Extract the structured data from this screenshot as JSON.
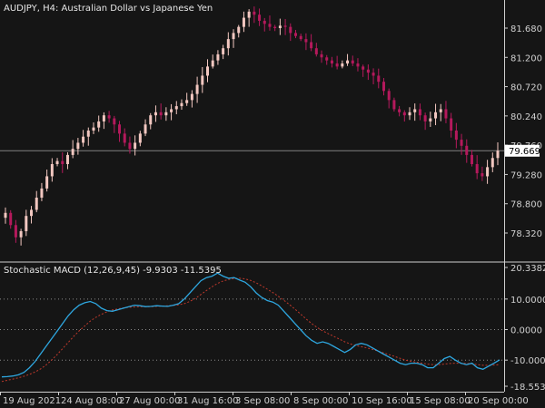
{
  "chart": {
    "title": "AUDJPY, H4:  Australian Dollar vs Japanese Yen",
    "symbol": "AUDJPY",
    "timeframe": "H4",
    "current_price": "79.669",
    "price_axis": [
      "81.680",
      "81.200",
      "80.720",
      "80.240",
      "79.760",
      "79.280",
      "78.800",
      "78.320"
    ],
    "indicator_title": "Stochastic MACD (12,26,9,45) -9.9303 -11.5395",
    "indicator_axis": [
      "20.3382",
      "10.0000",
      "0.0000",
      "-10.0000",
      "-18.5539"
    ],
    "time_axis": [
      "19 Aug 2021",
      "24 Aug 08:00",
      "27 Aug 00:00",
      "31 Aug 16:00",
      "3 Sep 08:00",
      "8 Sep 00:00",
      "10 Sep 16:00",
      "15 Sep 08:00",
      "20 Sep 00:00"
    ],
    "colors": {
      "background": "#151515",
      "bull_candle": "#f2c7c0",
      "bear_candle": "#b5195c",
      "macd_line": "#2ea7e0",
      "signal_line": "#c0392b",
      "grid": "#8a8a8a",
      "price_line": "#808080",
      "text": "#d0d0d0"
    }
  },
  "chart_data": [
    {
      "type": "candlestick",
      "title": "AUDJPY, H4:  Australian Dollar vs Japanese Yen",
      "y_ticks": [
        81.68,
        81.2,
        80.72,
        80.24,
        79.76,
        79.28,
        78.8,
        78.32
      ],
      "ylim": [
        78.15,
        82.1
      ],
      "x_tick_labels": [
        "19 Aug 2021",
        "24 Aug 08:00",
        "27 Aug 00:00",
        "31 Aug 16:00",
        "3 Sep 08:00",
        "8 Sep 00:00",
        "10 Sep 16:00",
        "15 Sep 08:00",
        "20 Sep 00:00"
      ],
      "current_price": 79.669,
      "close_path": [
        78.65,
        78.45,
        78.25,
        78.35,
        78.6,
        78.7,
        78.9,
        79.05,
        79.25,
        79.45,
        79.5,
        79.45,
        79.6,
        79.7,
        79.8,
        79.9,
        80.0,
        80.05,
        80.15,
        80.25,
        80.2,
        80.1,
        79.95,
        79.8,
        79.7,
        79.8,
        79.95,
        80.1,
        80.25,
        80.3,
        80.25,
        80.3,
        80.35,
        80.4,
        80.45,
        80.5,
        80.6,
        80.75,
        80.9,
        81.05,
        81.15,
        81.25,
        81.35,
        81.5,
        81.6,
        81.7,
        81.85,
        81.95,
        81.9,
        81.8,
        81.75,
        81.7,
        81.68,
        81.72,
        81.7,
        81.6,
        81.55,
        81.5,
        81.45,
        81.35,
        81.25,
        81.2,
        81.15,
        81.1,
        81.05,
        81.1,
        81.15,
        81.1,
        81.05,
        81.0,
        80.95,
        80.9,
        80.8,
        80.65,
        80.5,
        80.35,
        80.3,
        80.25,
        80.3,
        80.35,
        80.25,
        80.15,
        80.2,
        80.3,
        80.35,
        80.2,
        80.0,
        79.85,
        79.75,
        79.6,
        79.45,
        79.3,
        79.25,
        79.4,
        79.55,
        79.67
      ]
    },
    {
      "type": "line",
      "title": "Stochastic MACD (12,26,9,45) -9.9303 -11.5395",
      "y_ticks": [
        20.3382,
        10.0,
        0.0,
        -10.0,
        -18.5539
      ],
      "ylim": [
        -18.5539,
        20.3382
      ],
      "series": [
        {
          "name": "Stochastic MACD",
          "values": [
            -15.5,
            -15.4,
            -15.2,
            -14.8,
            -14.0,
            -12.5,
            -10.5,
            -8.0,
            -5.5,
            -3.0,
            -0.5,
            2.0,
            4.5,
            6.5,
            8.0,
            8.8,
            9.2,
            8.5,
            7.0,
            6.2,
            6.0,
            6.5,
            7.0,
            7.5,
            8.0,
            7.8,
            7.5,
            7.6,
            7.8,
            7.7,
            7.6,
            8.0,
            8.5,
            10.0,
            12.0,
            14.0,
            16.0,
            17.0,
            17.5,
            18.5,
            17.5,
            16.8,
            17.0,
            16.2,
            15.5,
            14.0,
            12.0,
            10.5,
            9.5,
            9.0,
            8.0,
            6.0,
            4.0,
            2.0,
            0.0,
            -2.0,
            -3.5,
            -4.5,
            -4.0,
            -4.5,
            -5.5,
            -6.5,
            -7.5,
            -6.5,
            -5.0,
            -4.5,
            -5.0,
            -6.0,
            -7.0,
            -8.0,
            -9.0,
            -10.0,
            -11.0,
            -11.5,
            -11.0,
            -11.0,
            -11.5,
            -12.5,
            -12.5,
            -11.0,
            -9.5,
            -8.8,
            -10.0,
            -11.0,
            -11.5,
            -11.0,
            -12.5,
            -13.0,
            -12.0,
            -11.0,
            -9.9
          ]
        },
        {
          "name": "Signal",
          "values": [
            -17.0,
            -16.6,
            -16.2,
            -15.8,
            -15.3,
            -14.7,
            -13.9,
            -12.9,
            -11.6,
            -10.0,
            -8.2,
            -6.2,
            -4.2,
            -2.2,
            -0.4,
            1.2,
            2.8,
            4.0,
            5.0,
            5.8,
            6.4,
            6.8,
            7.1,
            7.3,
            7.4,
            7.5,
            7.5,
            7.5,
            7.6,
            7.7,
            7.8,
            7.9,
            8.1,
            8.5,
            9.2,
            10.2,
            11.5,
            12.8,
            14.0,
            15.1,
            15.9,
            16.4,
            16.7,
            16.8,
            16.6,
            16.1,
            15.3,
            14.3,
            13.2,
            12.1,
            10.9,
            9.6,
            8.2,
            6.7,
            5.1,
            3.5,
            2.0,
            0.7,
            -0.4,
            -1.3,
            -2.2,
            -3.1,
            -4.0,
            -4.7,
            -5.2,
            -5.6,
            -6.0,
            -6.5,
            -7.0,
            -7.6,
            -8.2,
            -8.8,
            -9.4,
            -10.0,
            -10.4,
            -10.7,
            -11.0,
            -11.3,
            -11.5,
            -11.5,
            -11.3,
            -11.1,
            -11.0,
            -11.0,
            -11.1,
            -11.2,
            -11.5,
            -11.7,
            -11.7,
            -11.6,
            -11.5
          ]
        }
      ]
    }
  ]
}
